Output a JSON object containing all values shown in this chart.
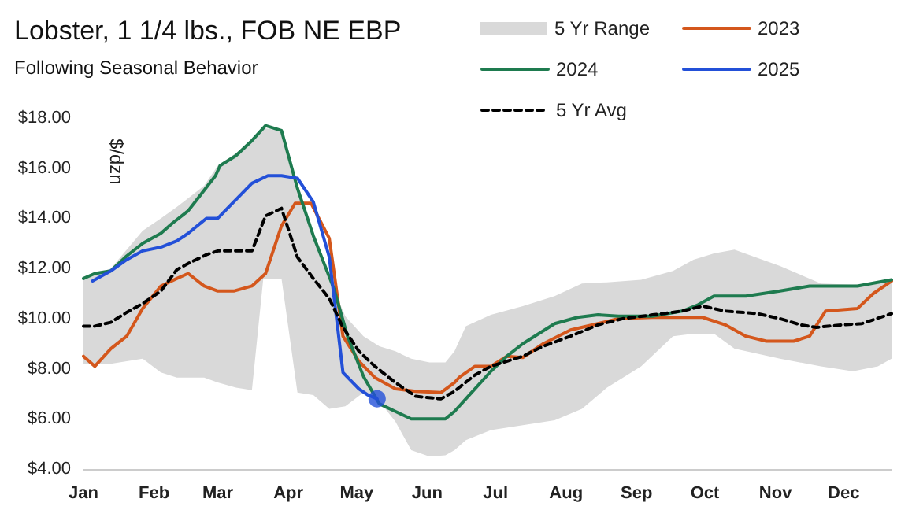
{
  "chart_data": {
    "type": "line",
    "title": "Lobster, 1 1/4 lbs., FOB NE EBP",
    "subtitle": "Following Seasonal Behavior",
    "ylabel": "$/dzn",
    "xlim": [
      "--01-01",
      "--12-22"
    ],
    "xticks": [
      {
        "value": "--01-01",
        "label": "Jan"
      },
      {
        "value": "--02-01",
        "label": "Feb"
      },
      {
        "value": "--03-01",
        "label": "Mar"
      },
      {
        "value": "--04-01",
        "label": "Apr"
      },
      {
        "value": "--05-01",
        "label": "May"
      },
      {
        "value": "--06-01",
        "label": "Jun"
      },
      {
        "value": "--07-01",
        "label": "Jul"
      },
      {
        "value": "--08-01",
        "label": "Aug"
      },
      {
        "value": "--09-01",
        "label": "Sep"
      },
      {
        "value": "--10-01",
        "label": "Oct"
      },
      {
        "value": "--11-01",
        "label": "Nov"
      },
      {
        "value": "--12-01",
        "label": "Dec"
      }
    ],
    "ylim": [
      4,
      18
    ],
    "yticks": [
      {
        "value": 4,
        "label": "$4.00"
      },
      {
        "value": 6,
        "label": "$6.00"
      },
      {
        "value": 8,
        "label": "$8.00"
      },
      {
        "value": 10,
        "label": "$10.00"
      },
      {
        "value": 12,
        "label": "$12.00"
      },
      {
        "value": 14,
        "label": "$14.00"
      },
      {
        "value": 16,
        "label": "$16.00"
      },
      {
        "value": 18,
        "label": "$18.00"
      }
    ],
    "grid": false,
    "legend": "top right",
    "series": [
      {
        "name": "5 Yr Range",
        "type": "area",
        "color": "#d9d9d9",
        "x": [
          "--01-01",
          "--01-13",
          "--01-27",
          "--02-04",
          "--02-11",
          "--02-23",
          "--03-01",
          "--03-09",
          "--03-16",
          "--03-21",
          "--03-29",
          "--04-05",
          "--04-12",
          "--04-19",
          "--04-26",
          "--05-04",
          "--05-11",
          "--05-18",
          "--05-25",
          "--06-02",
          "--06-09",
          "--06-13",
          "--06-18",
          "--06-29",
          "--07-13",
          "--07-27",
          "--08-08",
          "--08-19",
          "--09-03",
          "--09-17",
          "--09-26",
          "--10-05",
          "--10-14",
          "--11-03",
          "--11-21",
          "--12-05",
          "--12-16",
          "--12-22"
        ],
        "values": [
          null,
          null,
          null,
          null,
          null,
          null,
          null,
          null,
          null,
          null,
          null,
          null,
          null,
          null,
          null,
          null,
          null,
          null,
          null,
          null,
          null,
          null,
          null,
          null,
          null,
          null,
          null,
          null,
          null,
          null,
          null,
          null,
          null,
          null,
          null,
          null,
          null,
          null
        ],
        "upper": [
          11.6,
          12.0,
          13.5,
          14.0,
          14.45,
          15.3,
          16.1,
          16.6,
          17.15,
          17.6,
          17.5,
          15.4,
          13.3,
          11.6,
          10.1,
          9.3,
          8.9,
          8.7,
          8.4,
          8.25,
          8.25,
          8.7,
          9.7,
          10.15,
          10.5,
          10.9,
          11.4,
          11.45,
          11.55,
          11.9,
          12.35,
          12.6,
          12.75,
          12.1,
          11.4,
          11.35,
          11.4,
          11.6
        ],
        "lower": [
          8.2,
          8.2,
          8.4,
          7.85,
          7.65,
          7.65,
          7.45,
          7.25,
          7.15,
          11.6,
          11.6,
          7.05,
          6.95,
          6.4,
          6.5,
          7.05,
          6.7,
          5.9,
          4.75,
          4.5,
          4.55,
          4.75,
          5.15,
          5.55,
          5.75,
          5.95,
          6.4,
          7.25,
          8.1,
          9.3,
          9.4,
          9.4,
          8.8,
          8.4,
          8.1,
          7.9,
          8.1,
          8.4
        ]
      },
      {
        "name": "2023",
        "color": "#d4571c",
        "marker": "none",
        "line_style": "solid",
        "x": [
          "--01-01",
          "--01-06",
          "--01-13",
          "--01-20",
          "--01-27",
          "--02-04",
          "--02-11",
          "--02-16",
          "--02-23",
          "--03-01",
          "--03-08",
          "--03-16",
          "--03-22",
          "--03-29",
          "--04-04",
          "--04-11",
          "--04-19",
          "--04-25",
          "--05-02",
          "--05-09",
          "--05-18",
          "--05-27",
          "--06-07",
          "--06-13",
          "--06-15",
          "--06-22",
          "--06-29",
          "--07-06",
          "--07-13",
          "--07-22",
          "--08-03",
          "--08-15",
          "--08-24",
          "--09-08",
          "--09-30",
          "--10-10",
          "--10-19",
          "--10-28",
          "--11-09",
          "--11-16",
          "--11-23",
          "--12-07",
          "--12-14",
          "--12-22"
        ],
        "values": [
          8.5,
          8.1,
          8.8,
          9.3,
          10.4,
          11.3,
          11.6,
          11.8,
          11.3,
          11.1,
          11.1,
          11.3,
          11.8,
          13.7,
          14.6,
          14.6,
          13.2,
          9.3,
          8.3,
          7.65,
          7.2,
          7.1,
          7.05,
          7.45,
          7.65,
          8.1,
          8.1,
          8.5,
          8.45,
          9.0,
          9.55,
          9.8,
          10.0,
          10.05,
          10.05,
          9.75,
          9.3,
          9.1,
          9.1,
          9.3,
          10.3,
          10.4,
          11.0,
          11.5
        ]
      },
      {
        "name": "2024",
        "color": "#1e7b4f",
        "marker": "none",
        "line_style": "solid",
        "x": [
          "--01-01",
          "--01-06",
          "--01-13",
          "--01-20",
          "--01-27",
          "--02-04",
          "--02-09",
          "--02-16",
          "--02-22",
          "--02-28",
          "--03-02",
          "--03-09",
          "--03-16",
          "--03-22",
          "--03-29",
          "--04-05",
          "--04-12",
          "--04-21",
          "--04-27",
          "--05-04",
          "--05-11",
          "--05-18",
          "--05-25",
          "--06-02",
          "--06-09",
          "--06-13",
          "--06-20",
          "--06-29",
          "--07-06",
          "--07-13",
          "--07-20",
          "--07-27",
          "--08-06",
          "--08-15",
          "--08-24",
          "--09-08",
          "--09-21",
          "--09-28",
          "--10-05",
          "--10-19",
          "--11-03",
          "--11-16",
          "--12-07",
          "--12-22"
        ],
        "values": [
          11.6,
          11.8,
          11.9,
          12.5,
          13.0,
          13.4,
          13.8,
          14.3,
          15.0,
          15.7,
          16.1,
          16.5,
          17.1,
          17.7,
          17.5,
          15.2,
          13.3,
          11.2,
          9.3,
          7.7,
          6.6,
          6.3,
          6.0,
          6.0,
          6.0,
          6.3,
          7.0,
          7.9,
          8.5,
          9.0,
          9.4,
          9.8,
          10.05,
          10.15,
          10.1,
          10.1,
          10.3,
          10.55,
          10.9,
          10.9,
          11.1,
          11.3,
          11.3,
          11.55
        ]
      },
      {
        "type": "scatter",
        "color": "#2350d8",
        "marker": "circle",
        "x": [
          "--05-10"
        ],
        "values": [
          6.8
        ]
      },
      {
        "name": "2025",
        "color": "#2350d8",
        "marker": "none",
        "line_style": "solid",
        "x": [
          "--01-05",
          "--01-13",
          "--01-20",
          "--01-27",
          "--02-04",
          "--02-11",
          "--02-16",
          "--02-24",
          "--03-01",
          "--03-09",
          "--03-16",
          "--03-23",
          "--03-29",
          "--04-05",
          "--04-12",
          "--04-19",
          "--04-25",
          "--05-02",
          "--05-06",
          "--05-10"
        ],
        "values": [
          11.5,
          11.9,
          12.35,
          12.7,
          12.85,
          13.1,
          13.4,
          14.0,
          14.0,
          14.75,
          15.4,
          15.7,
          15.7,
          15.6,
          14.65,
          12.45,
          7.85,
          7.2,
          6.95,
          6.8
        ]
      },
      {
        "name": "5 Yr Avg",
        "color": "#000000",
        "marker": "none",
        "line_style": "dashed",
        "x": [
          "--01-01",
          "--01-06",
          "--01-13",
          "--01-20",
          "--01-27",
          "--02-04",
          "--02-11",
          "--02-16",
          "--02-24",
          "--03-01",
          "--03-09",
          "--03-16",
          "--03-22",
          "--03-29",
          "--04-05",
          "--04-12",
          "--04-19",
          "--04-25",
          "--05-02",
          "--05-09",
          "--05-18",
          "--05-27",
          "--06-07",
          "--06-13",
          "--06-15",
          "--06-22",
          "--06-29",
          "--07-13",
          "--07-22",
          "--08-03",
          "--08-15",
          "--08-26",
          "--09-08",
          "--09-21",
          "--09-30",
          "--10-10",
          "--10-24",
          "--11-03",
          "--11-12",
          "--11-19",
          "--11-30",
          "--12-09",
          "--12-22"
        ],
        "values": [
          9.7,
          9.7,
          9.85,
          10.25,
          10.6,
          11.1,
          11.95,
          12.2,
          12.55,
          12.7,
          12.7,
          12.7,
          14.1,
          14.4,
          12.45,
          11.6,
          10.8,
          9.65,
          8.7,
          8.1,
          7.45,
          6.9,
          6.8,
          7.1,
          7.25,
          7.75,
          8.1,
          8.5,
          8.9,
          9.3,
          9.75,
          10.0,
          10.15,
          10.3,
          10.5,
          10.3,
          10.2,
          10.0,
          9.75,
          9.65,
          9.75,
          9.8,
          10.2
        ]
      }
    ]
  }
}
